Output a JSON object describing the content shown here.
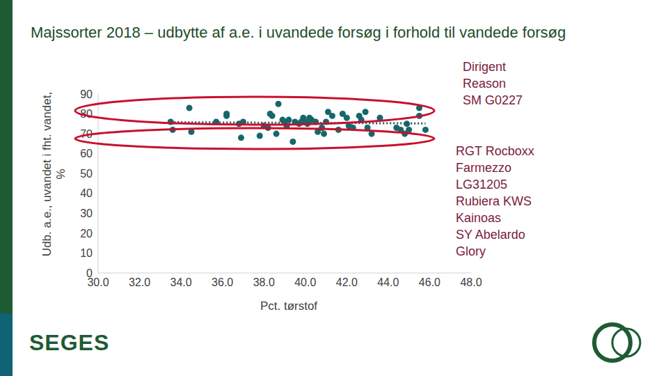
{
  "chart_data": {
    "type": "scatter",
    "title": "Majssorter 2018 – udbytte af a.e. i uvandede forsøg i forhold til vandede forsøg",
    "x_label": "Pct. tørstof",
    "y_label": "Udb. a.e., uvandet i fht. vandet, %",
    "x": [
      33.5,
      33.6,
      34.4,
      34.5,
      35.7,
      36.2,
      36.2,
      36.8,
      36.9,
      37.0,
      37.8,
      38.0,
      38.2,
      38.3,
      38.4,
      38.6,
      38.7,
      38.9,
      39.0,
      39.1,
      39.2,
      39.4,
      39.5,
      39.7,
      39.8,
      39.9,
      40.0,
      40.1,
      40.2,
      40.3,
      40.5,
      40.6,
      40.8,
      40.9,
      41.0,
      41.1,
      41.3,
      41.6,
      41.8,
      42.0,
      42.1,
      42.3,
      42.6,
      42.7,
      42.9,
      43.0,
      43.2,
      43.6,
      44.4,
      44.6,
      44.8,
      44.9,
      45.0,
      45.5,
      45.5,
      45.8
    ],
    "values": [
      76,
      72,
      83,
      71,
      76,
      79,
      80,
      75,
      68,
      76,
      69,
      74,
      73,
      80,
      79,
      70,
      85,
      77,
      76,
      74,
      77,
      66,
      76,
      75,
      76,
      78,
      76,
      75,
      78,
      77,
      76,
      71,
      73,
      70,
      76,
      81,
      79,
      72,
      80,
      78,
      74,
      73,
      79,
      77,
      81,
      73,
      70,
      78,
      73,
      72,
      70,
      75,
      72,
      83,
      79,
      72
    ],
    "color": "#16676b",
    "marker": "circle",
    "trendline": {
      "x": [
        33.5,
        45.8
      ],
      "values": [
        75.8,
        75.2
      ],
      "line_style": "dotted",
      "color": "#1b5a63"
    },
    "xlim": [
      30,
      48
    ],
    "ylim": [
      0,
      90
    ],
    "xticks": [
      {
        "value": 30,
        "label": "30.0"
      },
      {
        "value": 32,
        "label": "32.0"
      },
      {
        "value": 34,
        "label": "34.0"
      },
      {
        "value": 36,
        "label": "36.0"
      },
      {
        "value": 38,
        "label": "38.0"
      },
      {
        "value": 40,
        "label": "40.0"
      },
      {
        "value": 42,
        "label": "42.0"
      },
      {
        "value": 44,
        "label": "44.0"
      },
      {
        "value": 46,
        "label": "46.0"
      },
      {
        "value": 48,
        "label": "48.0"
      }
    ],
    "yticks": [
      0,
      10,
      20,
      30,
      40,
      50,
      60,
      70,
      80,
      90
    ],
    "grid": false,
    "legend": "none",
    "annotations": [
      {
        "text": [
          "Dirigent",
          "Reason",
          "SM G0227"
        ],
        "color": "#7b1d3a"
      },
      {
        "text": [
          "RGT Rocboxx",
          "Farmezzo",
          "LG31205",
          "Rubiera KWS",
          "Kainoas",
          "SY Abelardo",
          "Glory"
        ],
        "color": "#7b1d3a"
      }
    ]
  },
  "logo": "SEGES"
}
